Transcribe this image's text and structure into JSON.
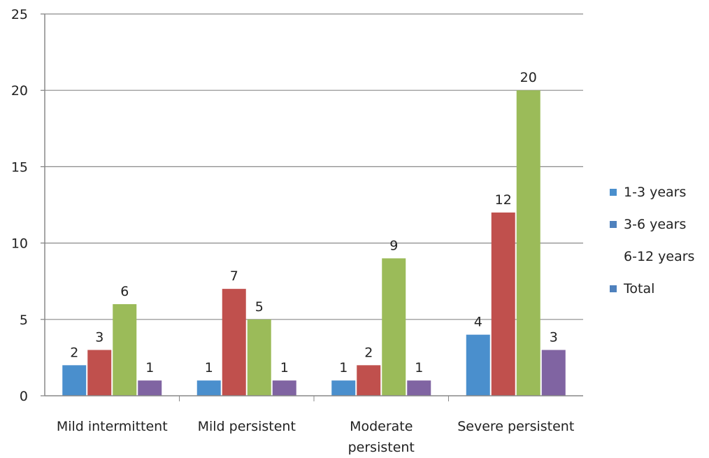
{
  "chart_data": {
    "type": "bar",
    "categories": [
      [
        "Mild intermittent"
      ],
      [
        "Mild persistent"
      ],
      [
        "Moderate",
        "persistent"
      ],
      [
        "Severe persistent"
      ]
    ],
    "series": [
      {
        "name": "1-3 years",
        "color": "#4a8fcd",
        "legend_color": "#4a8fcd",
        "values": [
          2,
          1,
          1,
          4
        ]
      },
      {
        "name": "3-6 years",
        "color": "#c0504d",
        "legend_color": "#4f81bd",
        "values": [
          3,
          7,
          2,
          12
        ]
      },
      {
        "name": "6-12 years",
        "color": "#9bbb59",
        "legend_color": null,
        "values": [
          6,
          5,
          9,
          20
        ]
      },
      {
        "name": "Total",
        "color": "#8064a2",
        "legend_color": "#4f81bd",
        "values": [
          1,
          1,
          1,
          3
        ]
      }
    ],
    "ylim": [
      0,
      25
    ],
    "yticks": [
      0,
      5,
      10,
      15,
      20,
      25
    ],
    "title": "",
    "xlabel": "",
    "ylabel": "",
    "grid": true,
    "legend_position": "right"
  }
}
